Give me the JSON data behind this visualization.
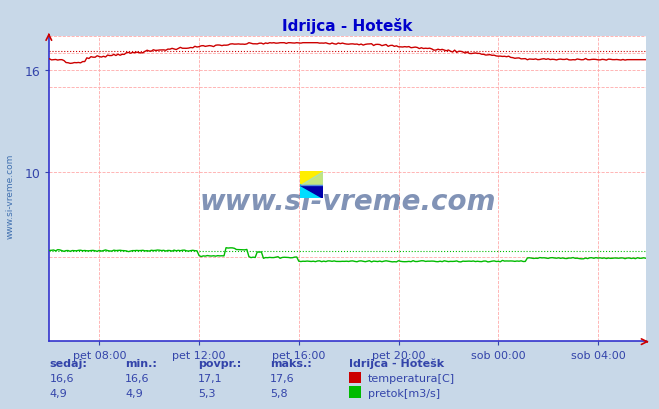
{
  "title": "Idrijca - Hotešk",
  "bg_color": "#c8d8e8",
  "plot_bg_color": "#ffffff",
  "grid_color_dashed": "#ff9999",
  "grid_color_solid": "#ddddff",
  "title_color": "#0000cc",
  "axis_left_color": "#3333cc",
  "axis_bottom_color": "#3333cc",
  "tick_color": "#3344aa",
  "temp_color": "#cc0000",
  "flow_color": "#00bb00",
  "ylim": [
    0,
    18
  ],
  "yticks": [
    10,
    16
  ],
  "xtick_labels": [
    "pet 08:00",
    "pet 12:00",
    "pet 16:00",
    "pet 20:00",
    "sob 00:00",
    "sob 04:00"
  ],
  "n_points": 288,
  "temp_avg": 17.1,
  "temp_current": 16.6,
  "temp_min_val": 16.6,
  "temp_max_val": 17.6,
  "flow_avg": 5.3,
  "flow_current": 4.9,
  "flow_min_val": 4.9,
  "flow_max_val": 5.8,
  "watermark": "www.si-vreme.com",
  "watermark_color": "#1a3a7a",
  "footer_color": "#3344aa",
  "legend_title": "Idrijca - Hotešk",
  "temp_label": "temperatura[C]",
  "flow_label": "pretok[m3/s]"
}
